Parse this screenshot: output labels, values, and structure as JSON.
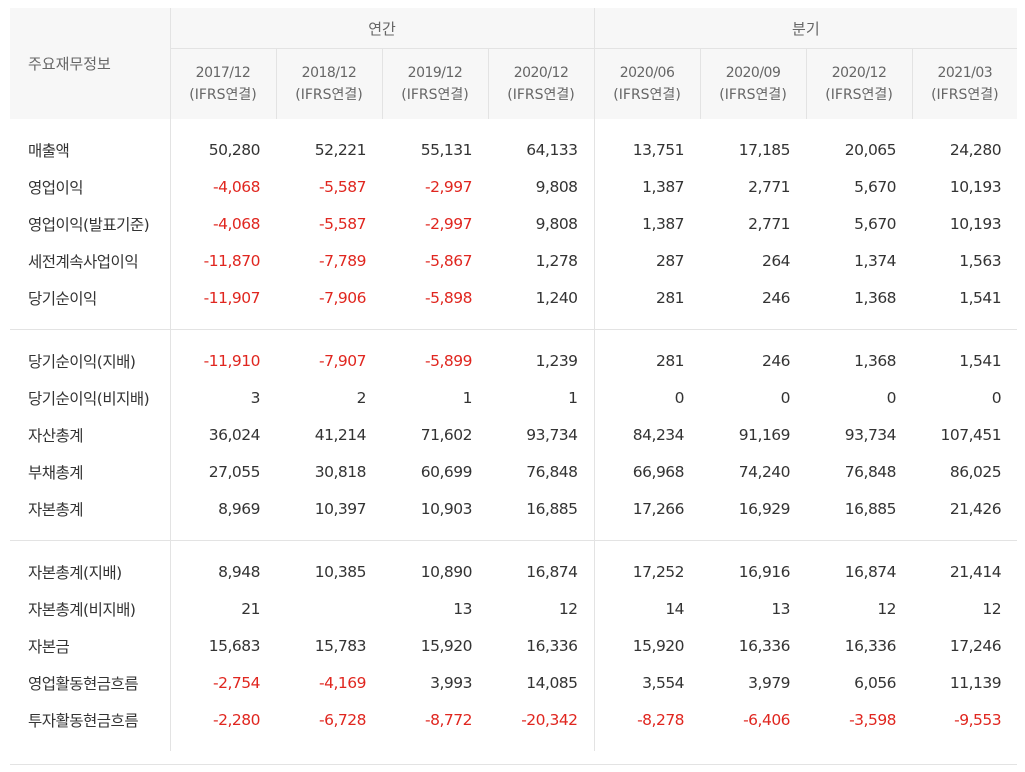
{
  "header": {
    "row_label": "주요재무정보",
    "group_annual": "연간",
    "group_quarterly": "분기",
    "periods": [
      {
        "period": "2017/12",
        "basis": "(IFRS연결)"
      },
      {
        "period": "2018/12",
        "basis": "(IFRS연결)"
      },
      {
        "period": "2019/12",
        "basis": "(IFRS연결)"
      },
      {
        "period": "2020/12",
        "basis": "(IFRS연결)"
      },
      {
        "period": "2020/06",
        "basis": "(IFRS연결)"
      },
      {
        "period": "2020/09",
        "basis": "(IFRS연결)"
      },
      {
        "period": "2020/12",
        "basis": "(IFRS연결)"
      },
      {
        "period": "2021/03",
        "basis": "(IFRS연결)"
      }
    ]
  },
  "rows": [
    {
      "label": "매출액",
      "values": [
        "50,280",
        "52,221",
        "55,131",
        "64,133",
        "13,751",
        "17,185",
        "20,065",
        "24,280"
      ]
    },
    {
      "label": "영업이익",
      "values": [
        "-4,068",
        "-5,587",
        "-2,997",
        "9,808",
        "1,387",
        "2,771",
        "5,670",
        "10,193"
      ]
    },
    {
      "label": "영업이익(발표기준)",
      "values": [
        "-4,068",
        "-5,587",
        "-2,997",
        "9,808",
        "1,387",
        "2,771",
        "5,670",
        "10,193"
      ]
    },
    {
      "label": "세전계속사업이익",
      "values": [
        "-11,870",
        "-7,789",
        "-5,867",
        "1,278",
        "287",
        "264",
        "1,374",
        "1,563"
      ]
    },
    {
      "label": "당기순이익",
      "values": [
        "-11,907",
        "-7,906",
        "-5,898",
        "1,240",
        "281",
        "246",
        "1,368",
        "1,541"
      ]
    },
    {
      "label": "당기순이익(지배)",
      "values": [
        "-11,910",
        "-7,907",
        "-5,899",
        "1,239",
        "281",
        "246",
        "1,368",
        "1,541"
      ]
    },
    {
      "label": "당기순이익(비지배)",
      "values": [
        "3",
        "2",
        "1",
        "1",
        "0",
        "0",
        "0",
        "0"
      ]
    },
    {
      "label": "자산총계",
      "values": [
        "36,024",
        "41,214",
        "71,602",
        "93,734",
        "84,234",
        "91,169",
        "93,734",
        "107,451"
      ]
    },
    {
      "label": "부채총계",
      "values": [
        "27,055",
        "30,818",
        "60,699",
        "76,848",
        "66,968",
        "74,240",
        "76,848",
        "86,025"
      ]
    },
    {
      "label": "자본총계",
      "values": [
        "8,969",
        "10,397",
        "10,903",
        "16,885",
        "17,266",
        "16,929",
        "16,885",
        "21,426"
      ]
    },
    {
      "label": "자본총계(지배)",
      "values": [
        "8,948",
        "10,385",
        "10,890",
        "16,874",
        "17,252",
        "16,916",
        "16,874",
        "21,414"
      ]
    },
    {
      "label": "자본총계(비지배)",
      "values": [
        "21",
        "",
        "13",
        "12",
        "14",
        "13",
        "12",
        "12"
      ]
    },
    {
      "label": "자본금",
      "values": [
        "15,683",
        "15,783",
        "15,920",
        "16,336",
        "15,920",
        "16,336",
        "16,336",
        "17,246"
      ]
    },
    {
      "label": "영업활동현금흐름",
      "values": [
        "-2,754",
        "-4,169",
        "3,993",
        "14,085",
        "3,554",
        "3,979",
        "6,056",
        "11,139"
      ]
    },
    {
      "label": "투자활동현금흐름",
      "values": [
        "-2,280",
        "-6,728",
        "-8,772",
        "-20,342",
        "-8,278",
        "-6,406",
        "-3,598",
        "-9,553"
      ]
    }
  ],
  "colors": {
    "negative": "#e0261f",
    "header_bg": "#f7f7f7",
    "border": "#e3e3e3"
  }
}
